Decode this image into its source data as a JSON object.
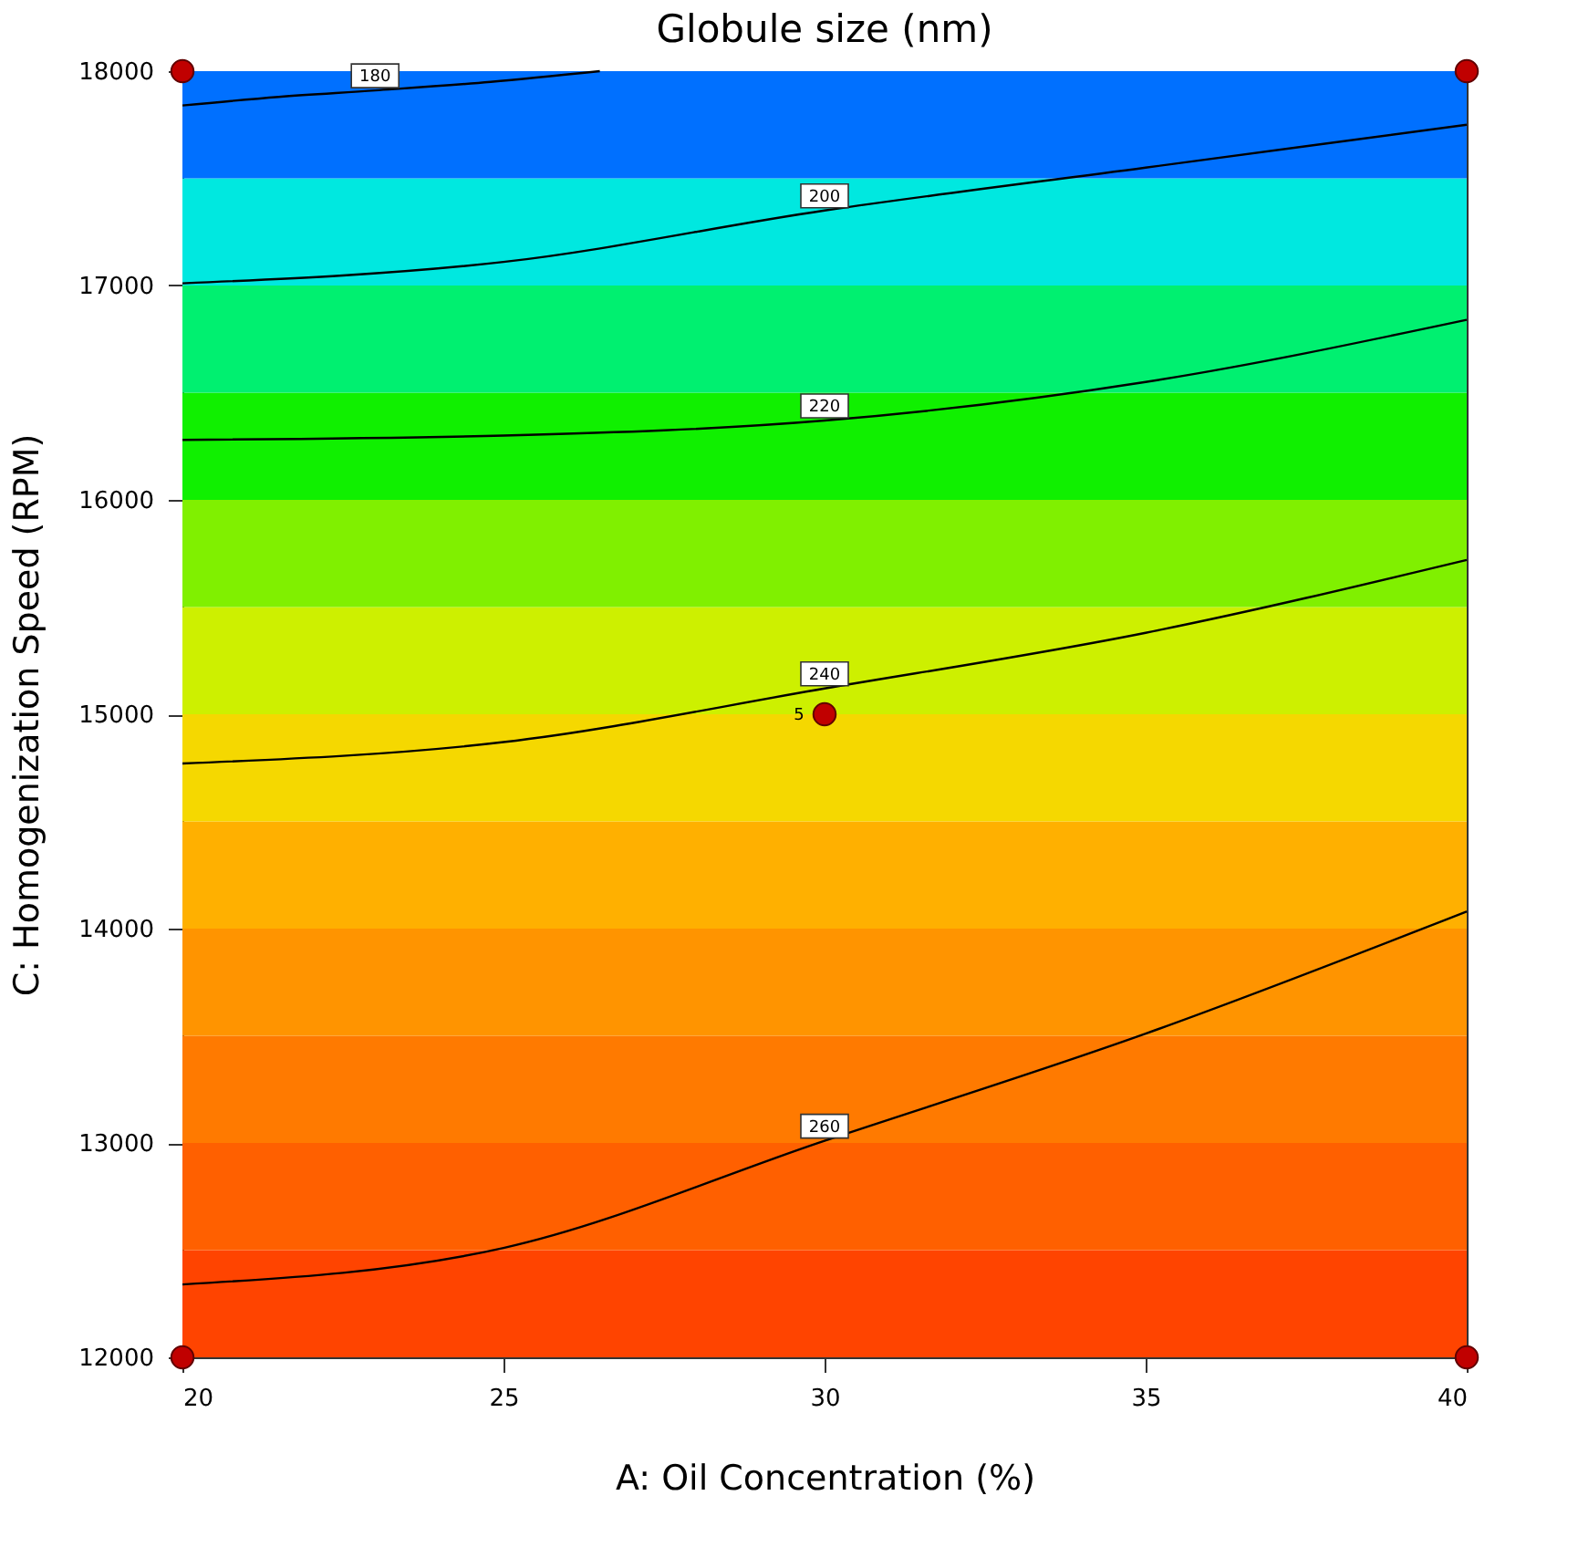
{
  "chart_data": {
    "type": "line",
    "title": "Globule size  (nm)",
    "xlabel": "A: Oil Concentration (%)",
    "ylabel": "C: Homogenization Speed (RPM)",
    "xlim": [
      20,
      40
    ],
    "xticks": [
      20,
      25,
      30,
      35,
      40
    ],
    "ylim": [
      12000,
      18000
    ],
    "yticks": [
      12000,
      13000,
      14000,
      15000,
      16000,
      17000,
      18000
    ],
    "grid": false,
    "line_style": "solid",
    "marker": "none",
    "bands": [
      {
        "axis": "y",
        "from": 12000,
        "to": 12500,
        "color": "#ff4400"
      },
      {
        "axis": "y",
        "from": 12500,
        "to": 13000,
        "color": "#ff6000"
      },
      {
        "axis": "y",
        "from": 13000,
        "to": 13500,
        "color": "#ff7a00"
      },
      {
        "axis": "y",
        "from": 13500,
        "to": 14000,
        "color": "#ff9400"
      },
      {
        "axis": "y",
        "from": 14000,
        "to": 14500,
        "color": "#ffb000"
      },
      {
        "axis": "y",
        "from": 14500,
        "to": 15000,
        "color": "#f5d800"
      },
      {
        "axis": "y",
        "from": 15000,
        "to": 15500,
        "color": "#cdf000"
      },
      {
        "axis": "y",
        "from": 15500,
        "to": 16000,
        "color": "#80f000"
      },
      {
        "axis": "y",
        "from": 16000,
        "to": 16500,
        "color": "#10f000"
      },
      {
        "axis": "y",
        "from": 16500,
        "to": 17000,
        "color": "#00f070"
      },
      {
        "axis": "y",
        "from": 17000,
        "to": 17500,
        "color": "#00e8e0"
      },
      {
        "axis": "y",
        "from": 17500,
        "to": 18000,
        "color": "#0070ff"
      }
    ],
    "series": [
      {
        "name": "180",
        "color": "#000000",
        "x": [
          20,
          21.5,
          23,
          24.8,
          26.5
        ],
        "values": [
          17840,
          17880,
          17910,
          17950,
          18000
        ]
      },
      {
        "name": "200",
        "color": "#000000",
        "x": [
          20,
          25,
          30,
          35,
          40
        ],
        "values": [
          17010,
          17110,
          17350,
          17550,
          17750
        ]
      },
      {
        "name": "220",
        "color": "#000000",
        "x": [
          20,
          25,
          30,
          35,
          40
        ],
        "values": [
          16280,
          16300,
          16370,
          16550,
          16840
        ]
      },
      {
        "name": "240",
        "color": "#000000",
        "x": [
          20,
          25,
          30,
          35,
          40
        ],
        "values": [
          14770,
          14870,
          15120,
          15380,
          15720
        ]
      },
      {
        "name": "260",
        "color": "#000000",
        "x": [
          20,
          25,
          30,
          35,
          40
        ],
        "values": [
          12340,
          12510,
          13010,
          13510,
          14080
        ]
      },
      {
        "type": "scatter",
        "color": "#c00000",
        "marker": "circle",
        "x": [
          20,
          20,
          40,
          40,
          30
        ],
        "values": [
          12000,
          18000,
          18000,
          12000,
          15000
        ]
      }
    ],
    "annotations": [
      {
        "text": "5",
        "x": 30,
        "y": 15000
      }
    ]
  }
}
